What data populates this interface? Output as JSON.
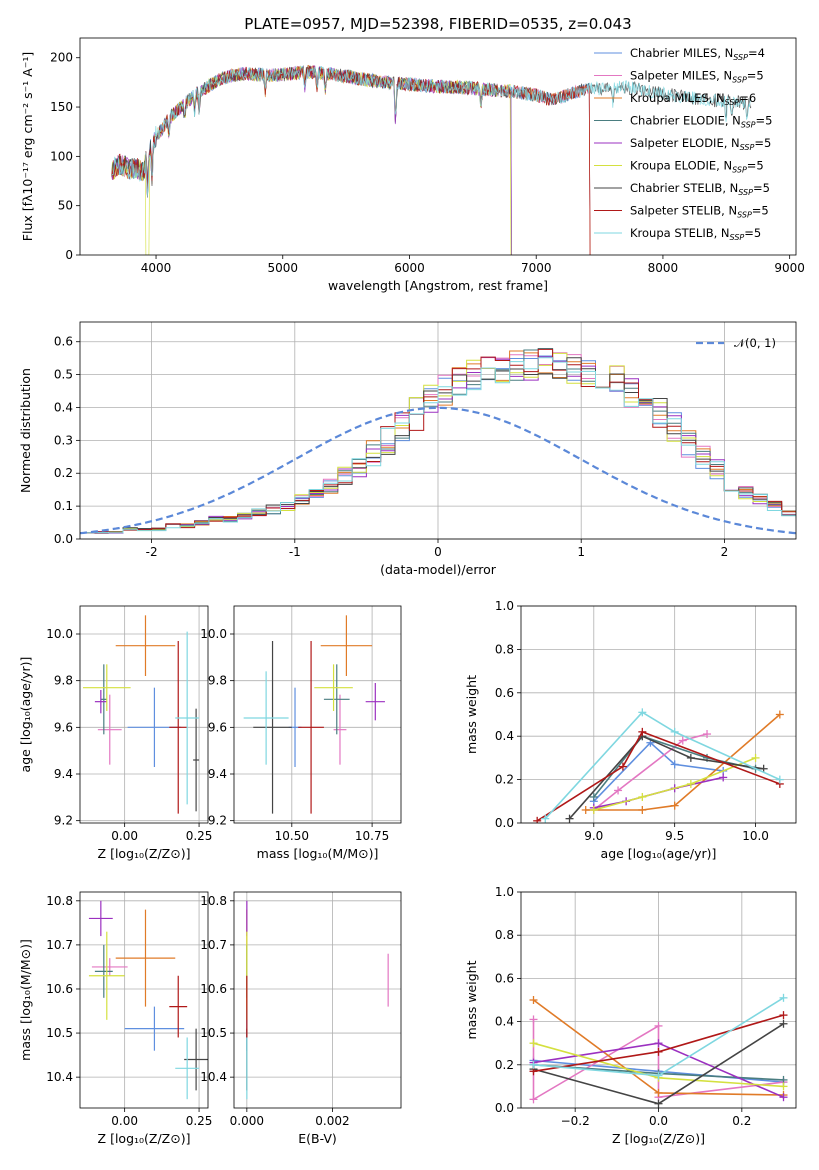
{
  "figure_title": "PLATE=0957, MJD=52398, FIBERID=0535, z=0.043",
  "colors": {
    "Chabrier MILES": "#5f8fdf",
    "Salpeter MILES": "#e377c2",
    "Kroupa MILES": "#e07b28",
    "Chabrier ELODIE": "#4a7d80",
    "Salpeter ELODIE": "#9b30c0",
    "Kroupa ELODIE": "#d4e03f",
    "Chabrier STELIB": "#444444",
    "Salpeter STELIB": "#b01818",
    "Kroupa STELIB": "#7fd7e0",
    "normal": "#5b88d8"
  },
  "chart_data": [
    {
      "id": "spectrum",
      "type": "line",
      "xlabel": "wavelength [Angstrom, rest frame]",
      "ylabel": "Flux [fλ10⁻¹⁷ erg cm⁻² s⁻¹ A⁻¹]",
      "xlim": [
        3400,
        9050
      ],
      "ylim": [
        0,
        220
      ],
      "xticks": [
        4000,
        5000,
        6000,
        7000,
        8000,
        9000
      ],
      "yticks": [
        0,
        50,
        100,
        150,
        200
      ],
      "legend_loc": "upper-right",
      "legend": [
        "Chabrier MILES, N_SSP=4",
        "Salpeter MILES, N_SSP=5",
        "Kroupa MILES, N_SSP=6",
        "Chabrier ELODIE, N_SSP=5",
        "Salpeter ELODIE, N_SSP=5",
        "Kroupa ELODIE, N_SSP=5",
        "Chabrier STELIB, N_SSP=5",
        "Salpeter STELIB, N_SSP=5",
        "Kroupa STELIB, N_SSP=5"
      ],
      "series_order": [
        "Chabrier MILES",
        "Salpeter MILES",
        "Kroupa MILES",
        "Chabrier ELODIE",
        "Salpeter ELODIE",
        "Kroupa ELODIE",
        "Chabrier STELIB",
        "Salpeter STELIB",
        "Kroupa STELIB"
      ],
      "continuum": {
        "wavelength": [
          3650,
          3700,
          3750,
          3800,
          3850,
          3900,
          3950,
          4000,
          4050,
          4100,
          4200,
          4300,
          4400,
          4500,
          4600,
          4700,
          4800,
          4900,
          5000,
          5200,
          5400,
          5600,
          5800,
          6000,
          6200,
          6400,
          6600,
          6800,
          7000,
          7100,
          7200,
          7300,
          7400,
          7500,
          7600,
          7700,
          7800,
          7900,
          8000,
          8200,
          8400,
          8600,
          8800
        ],
        "flux": [
          85,
          92,
          90,
          87,
          88,
          84,
          110,
          120,
          128,
          138,
          150,
          162,
          170,
          178,
          182,
          184,
          183,
          182,
          183,
          186,
          183,
          179,
          175,
          173,
          171,
          170,
          168,
          166,
          162,
          158,
          160,
          165,
          168,
          169,
          170,
          170,
          168,
          166,
          163,
          160,
          157,
          155,
          153
        ]
      },
      "dropouts": [
        {
          "series": "Kroupa ELODIE",
          "from": 3920,
          "to": 3945
        },
        {
          "series": "Kroupa ELODIE",
          "from": 6800,
          "to": 6810
        },
        {
          "series": "Kroupa MILES",
          "from": 7420,
          "to": 7440
        },
        {
          "series": "Salpeter STELIB",
          "from": 7420,
          "to": 7440
        }
      ],
      "series_xmax": {
        "Chabrier MILES": 7420,
        "Salpeter MILES": 7420,
        "Kroupa MILES": 7420,
        "Chabrier ELODIE": 6800,
        "Salpeter ELODIE": 6800,
        "Kroupa ELODIE": 6800,
        "Chabrier STELIB": 8700,
        "Salpeter STELIB": 7420,
        "Kroupa STELIB": 8700
      }
    },
    {
      "id": "residuals",
      "type": "step",
      "xlabel": "(data-model)/error",
      "ylabel": "Normed distribution",
      "xlim": [
        -2.5,
        2.5
      ],
      "ylim": [
        0,
        0.66
      ],
      "xticks": [
        -2,
        -1,
        0,
        1,
        2
      ],
      "yticks": [
        0.0,
        0.1,
        0.2,
        0.3,
        0.4,
        0.5,
        0.6
      ],
      "legend": [
        "𝒩(0, 1)"
      ],
      "legend_loc": "upper-right",
      "bin_width": 0.1,
      "bin_start": -2.5,
      "base_density": [
        0.02,
        0.02,
        0.02,
        0.03,
        0.03,
        0.03,
        0.04,
        0.04,
        0.05,
        0.06,
        0.06,
        0.07,
        0.08,
        0.09,
        0.1,
        0.12,
        0.14,
        0.16,
        0.19,
        0.22,
        0.26,
        0.3,
        0.34,
        0.38,
        0.42,
        0.45,
        0.48,
        0.5,
        0.51,
        0.52,
        0.53,
        0.53,
        0.54,
        0.53,
        0.52,
        0.51,
        0.5,
        0.48,
        0.45,
        0.42,
        0.38,
        0.34,
        0.29,
        0.25,
        0.21,
        0.17,
        0.14,
        0.12,
        0.1,
        0.08,
        0.07,
        0.06,
        0.05,
        0.05,
        0.04,
        0.04,
        0.03,
        0.03,
        0.02,
        0.02,
        0.02,
        0.02,
        0.02,
        0.02,
        0.02,
        0.02,
        0.02,
        0.02,
        0.02,
        0.02,
        0.02,
        0.02,
        0.02,
        0.02,
        0.02,
        0.02,
        0.02,
        0.02,
        0.02,
        0.02,
        0.02,
        0.02,
        0.02,
        0.02,
        0.02,
        0.02,
        0.02,
        0.02,
        0.02,
        0.02,
        0.02,
        0.02,
        0.02,
        0.02,
        0.02,
        0.02,
        0.02,
        0.02,
        0.02,
        0.02
      ]
    },
    {
      "id": "Z-age",
      "type": "errorbar",
      "xlabel": "Z [log₁₀(Z/Z⊙)]",
      "ylabel": "age  [log₁₀(age/yr)]",
      "xlim": [
        -0.15,
        0.28
      ],
      "ylim": [
        9.19,
        10.12
      ],
      "xticks": [
        0.0,
        0.25
      ],
      "xticklabels": [
        "0.00",
        "0.25"
      ],
      "yticks": [
        9.2,
        9.4,
        9.6,
        9.8,
        10.0
      ],
      "points": [
        {
          "series": "Chabrier MILES",
          "x": 0.1,
          "xerr": 0.09,
          "y": 9.6,
          "yerr": 0.17
        },
        {
          "series": "Salpeter MILES",
          "x": -0.05,
          "xerr": 0.04,
          "y": 9.59,
          "yerr": 0.15
        },
        {
          "series": "Kroupa MILES",
          "x": 0.07,
          "xerr": 0.1,
          "y": 9.95,
          "yerr": 0.13
        },
        {
          "series": "Chabrier ELODIE",
          "x": -0.07,
          "xerr": 0.01,
          "y": 9.72,
          "yerr": 0.15
        },
        {
          "series": "Salpeter ELODIE",
          "x": -0.08,
          "xerr": 0.02,
          "y": 9.71,
          "yerr": 0.05
        },
        {
          "series": "Kroupa ELODIE",
          "x": -0.06,
          "xerr": 0.08,
          "y": 9.77,
          "yerr": 0.1
        },
        {
          "series": "Chabrier STELIB",
          "x": 0.24,
          "xerr": 0.01,
          "y": 9.46,
          "yerr": 0.22
        },
        {
          "series": "Salpeter STELIB",
          "x": 0.18,
          "xerr": 0.03,
          "y": 9.6,
          "yerr": 0.37
        },
        {
          "series": "Kroupa STELIB",
          "x": 0.21,
          "xerr": 0.04,
          "y": 9.64,
          "yerr": 0.37
        }
      ]
    },
    {
      "id": "mass-age",
      "type": "errorbar",
      "xlabel": "mass [log₁₀(M/M⊙)]",
      "ylabel": "",
      "xlim": [
        10.32,
        10.84
      ],
      "ylim": [
        9.19,
        10.12
      ],
      "xticks": [
        10.5,
        10.75
      ],
      "xticklabels": [
        "10.50",
        "10.75"
      ],
      "yticks": [
        9.2,
        9.4,
        9.6,
        9.8,
        10.0
      ],
      "points": [
        {
          "series": "Chabrier MILES",
          "x": 10.51,
          "xerr": 0.02,
          "y": 9.6,
          "yerr": 0.17
        },
        {
          "series": "Salpeter MILES",
          "x": 10.65,
          "xerr": 0.02,
          "y": 9.59,
          "yerr": 0.15
        },
        {
          "series": "Kroupa MILES",
          "x": 10.67,
          "xerr": 0.08,
          "y": 9.95,
          "yerr": 0.13
        },
        {
          "series": "Chabrier ELODIE",
          "x": 10.64,
          "xerr": 0.04,
          "y": 9.72,
          "yerr": 0.15
        },
        {
          "series": "Salpeter ELODIE",
          "x": 10.76,
          "xerr": 0.03,
          "y": 9.71,
          "yerr": 0.08
        },
        {
          "series": "Kroupa ELODIE",
          "x": 10.63,
          "xerr": 0.06,
          "y": 9.77,
          "yerr": 0.1
        },
        {
          "series": "Chabrier STELIB",
          "x": 10.44,
          "xerr": 0.06,
          "y": 9.6,
          "yerr": 0.37
        },
        {
          "series": "Salpeter STELIB",
          "x": 10.56,
          "xerr": 0.04,
          "y": 9.6,
          "yerr": 0.37
        },
        {
          "series": "Kroupa STELIB",
          "x": 10.42,
          "xerr": 0.07,
          "y": 9.64,
          "yerr": 0.2
        }
      ]
    },
    {
      "id": "age-weight",
      "type": "line",
      "xlabel": "age  [log₁₀(age/yr)]",
      "ylabel": "mass weight",
      "xlim": [
        8.55,
        10.25
      ],
      "ylim": [
        0,
        1
      ],
      "xticks": [
        9.0,
        9.5,
        10.0
      ],
      "xticklabels": [
        "9.0",
        "9.5",
        "10.0"
      ],
      "yticks": [
        0.0,
        0.2,
        0.4,
        0.6,
        0.8,
        1.0
      ],
      "series": [
        {
          "name": "Chabrier MILES",
          "x": [
            9.0,
            9.35,
            9.5,
            9.8
          ],
          "y": [
            0.1,
            0.37,
            0.27,
            0.24
          ]
        },
        {
          "name": "Salpeter MILES",
          "x": [
            9.0,
            9.15,
            9.55,
            9.7
          ],
          "y": [
            0.06,
            0.15,
            0.38,
            0.41
          ]
        },
        {
          "name": "Kroupa MILES",
          "x": [
            8.95,
            9.3,
            9.5,
            10.15
          ],
          "y": [
            0.06,
            0.06,
            0.08,
            0.5
          ]
        },
        {
          "name": "Chabrier ELODIE",
          "x": [
            9.0,
            9.3,
            9.7,
            10.0
          ],
          "y": [
            0.12,
            0.4,
            0.3,
            0.25
          ]
        },
        {
          "name": "Salpeter ELODIE",
          "x": [
            9.0,
            9.2,
            9.5,
            9.8
          ],
          "y": [
            0.07,
            0.1,
            0.16,
            0.21
          ]
        },
        {
          "name": "Kroupa ELODIE",
          "x": [
            9.0,
            9.3,
            9.6,
            10.0
          ],
          "y": [
            0.06,
            0.12,
            0.18,
            0.3
          ]
        },
        {
          "name": "Chabrier STELIB",
          "x": [
            8.85,
            9.3,
            9.6,
            10.05
          ],
          "y": [
            0.02,
            0.4,
            0.3,
            0.25
          ]
        },
        {
          "name": "Salpeter STELIB",
          "x": [
            8.65,
            9.18,
            9.3,
            10.15
          ],
          "y": [
            0.01,
            0.26,
            0.42,
            0.18
          ]
        },
        {
          "name": "Kroupa STELIB",
          "x": [
            8.7,
            9.3,
            9.5,
            10.15
          ],
          "y": [
            0.02,
            0.51,
            0.42,
            0.2
          ]
        }
      ]
    },
    {
      "id": "Z-mass",
      "type": "errorbar",
      "xlabel": "Z [log₁₀(Z/Z⊙)]",
      "ylabel": "mass [log₁₀(M/M⊙)]",
      "xlim": [
        -0.15,
        0.28
      ],
      "ylim": [
        10.33,
        10.82
      ],
      "xticks": [
        0.0,
        0.25
      ],
      "xticklabels": [
        "0.00",
        "0.25"
      ],
      "yticks": [
        10.4,
        10.5,
        10.6,
        10.7,
        10.8
      ],
      "points": [
        {
          "series": "Chabrier MILES",
          "x": 0.1,
          "xerr": 0.1,
          "y": 10.51,
          "yerr": 0.05
        },
        {
          "series": "Salpeter MILES",
          "x": -0.05,
          "xerr": 0.06,
          "y": 10.65,
          "yerr": 0.02
        },
        {
          "series": "Kroupa MILES",
          "x": 0.07,
          "xerr": 0.1,
          "y": 10.67,
          "yerr": 0.11
        },
        {
          "series": "Chabrier ELODIE",
          "x": -0.07,
          "xerr": 0.03,
          "y": 10.64,
          "yerr": 0.06
        },
        {
          "series": "Salpeter ELODIE",
          "x": -0.08,
          "xerr": 0.04,
          "y": 10.76,
          "yerr": 0.04
        },
        {
          "series": "Kroupa ELODIE",
          "x": -0.06,
          "xerr": 0.06,
          "y": 10.63,
          "yerr": 0.1
        },
        {
          "series": "Chabrier STELIB",
          "x": 0.24,
          "xerr": 0.04,
          "y": 10.44,
          "yerr": 0.07
        },
        {
          "series": "Salpeter STELIB",
          "x": 0.18,
          "xerr": 0.03,
          "y": 10.56,
          "yerr": 0.07
        },
        {
          "series": "Kroupa STELIB",
          "x": 0.21,
          "xerr": 0.04,
          "y": 10.42,
          "yerr": 0.07
        }
      ]
    },
    {
      "id": "ebv-mass",
      "type": "errorbar",
      "xlabel": "E(B-V)",
      "ylabel": "",
      "xlim": [
        -0.0003,
        0.0036
      ],
      "ylim": [
        10.33,
        10.82
      ],
      "xticks": [
        0.0,
        0.002
      ],
      "xticklabels": [
        "0.000",
        "0.002"
      ],
      "yticks": [
        10.4,
        10.5,
        10.6,
        10.7,
        10.8
      ],
      "points": [
        {
          "series": "Chabrier MILES",
          "x": 0.0,
          "xerr": 0.0,
          "y": 10.51,
          "yerr": 0.05
        },
        {
          "series": "Salpeter MILES",
          "x": 0.0033,
          "xerr": 0.0,
          "y": 10.62,
          "yerr": 0.06
        },
        {
          "series": "Kroupa MILES",
          "x": 0.0,
          "xerr": 0.0,
          "y": 10.67,
          "yerr": 0.11
        },
        {
          "series": "Chabrier ELODIE",
          "x": 0.0,
          "xerr": 0.0,
          "y": 10.64,
          "yerr": 0.06
        },
        {
          "series": "Salpeter ELODIE",
          "x": 0.0,
          "xerr": 0.0,
          "y": 10.76,
          "yerr": 0.04
        },
        {
          "series": "Kroupa ELODIE",
          "x": 0.0,
          "xerr": 0.0,
          "y": 10.63,
          "yerr": 0.1
        },
        {
          "series": "Chabrier STELIB",
          "x": 0.0,
          "xerr": 0.0,
          "y": 10.44,
          "yerr": 0.07
        },
        {
          "series": "Salpeter STELIB",
          "x": 0.0,
          "xerr": 0.0,
          "y": 10.56,
          "yerr": 0.07
        },
        {
          "series": "Kroupa STELIB",
          "x": 0.0,
          "xerr": 0.0,
          "y": 10.42,
          "yerr": 0.07
        }
      ]
    },
    {
      "id": "Z-weight",
      "type": "line",
      "xlabel": "Z [log₁₀(Z/Z⊙)]",
      "ylabel": "mass weight",
      "xlim": [
        -0.33,
        0.33
      ],
      "ylim": [
        0,
        1
      ],
      "xticks": [
        -0.2,
        0.0,
        0.2
      ],
      "xticklabels": [
        "−0.2",
        "0.0",
        "0.2"
      ],
      "yticks": [
        0.0,
        0.2,
        0.4,
        0.6,
        0.8,
        1.0
      ],
      "series": [
        {
          "name": "Chabrier MILES",
          "x": [
            -0.3,
            0.0,
            0.3
          ],
          "y": [
            0.22,
            0.17,
            0.12
          ]
        },
        {
          "name": "Salpeter MILES",
          "x": [
            -0.3,
            -0.3,
            0.0,
            0.0,
            0.3
          ],
          "y": [
            0.41,
            0.04,
            0.38,
            0.05,
            0.12
          ]
        },
        {
          "name": "Kroupa MILES",
          "x": [
            -0.3,
            0.0,
            0.3
          ],
          "y": [
            0.5,
            0.07,
            0.06
          ]
        },
        {
          "name": "Chabrier ELODIE",
          "x": [
            -0.3,
            0.0,
            0.3
          ],
          "y": [
            0.2,
            0.16,
            0.13
          ]
        },
        {
          "name": "Salpeter ELODIE",
          "x": [
            -0.3,
            0.0,
            0.3
          ],
          "y": [
            0.21,
            0.3,
            0.05
          ]
        },
        {
          "name": "Kroupa ELODIE",
          "x": [
            -0.3,
            0.0,
            0.3
          ],
          "y": [
            0.3,
            0.14,
            0.1
          ]
        },
        {
          "name": "Chabrier STELIB",
          "x": [
            -0.3,
            0.0,
            0.3
          ],
          "y": [
            0.18,
            0.02,
            0.39
          ]
        },
        {
          "name": "Salpeter STELIB",
          "x": [
            -0.3,
            0.0,
            0.3
          ],
          "y": [
            0.17,
            0.26,
            0.43
          ]
        },
        {
          "name": "Kroupa STELIB",
          "x": [
            -0.3,
            0.0,
            0.3
          ],
          "y": [
            0.2,
            0.15,
            0.51
          ]
        }
      ]
    }
  ]
}
